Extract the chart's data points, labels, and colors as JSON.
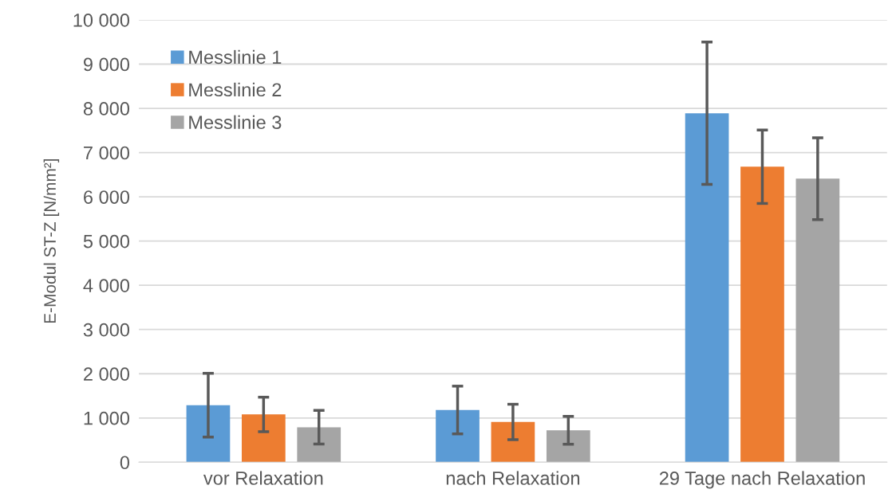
{
  "chart_data": {
    "type": "bar",
    "ylabel": "E-Modul ST-Z [N/mm²]",
    "categories": [
      "vor Relaxation",
      "nach Relaxation",
      "29 Tage nach Relaxation"
    ],
    "series": [
      {
        "name": "Messlinie 1",
        "color": "#5b9bd5",
        "values": [
          1290,
          1180,
          7890
        ],
        "errors": [
          720,
          540,
          1610
        ]
      },
      {
        "name": "Messlinie 2",
        "color": "#ed7d31",
        "values": [
          1080,
          910,
          6680
        ],
        "errors": [
          390,
          400,
          830
        ]
      },
      {
        "name": "Messlinie 3",
        "color": "#a5a5a5",
        "values": [
          790,
          720,
          6410
        ],
        "errors": [
          380,
          315,
          925
        ]
      }
    ],
    "ylim": [
      0,
      10000
    ],
    "yticks": [
      {
        "value": 0,
        "label": "0"
      },
      {
        "value": 1000,
        "label": "1 000"
      },
      {
        "value": 2000,
        "label": "2 000"
      },
      {
        "value": 3000,
        "label": "3 000"
      },
      {
        "value": 4000,
        "label": "4 000"
      },
      {
        "value": 5000,
        "label": "5 000"
      },
      {
        "value": 6000,
        "label": "6 000"
      },
      {
        "value": 7000,
        "label": "7 000"
      },
      {
        "value": 8000,
        "label": "8 000"
      },
      {
        "value": 9000,
        "label": "9 000"
      },
      {
        "value": 10000,
        "label": "10 000"
      }
    ],
    "grid": "y",
    "legend": "top left"
  }
}
